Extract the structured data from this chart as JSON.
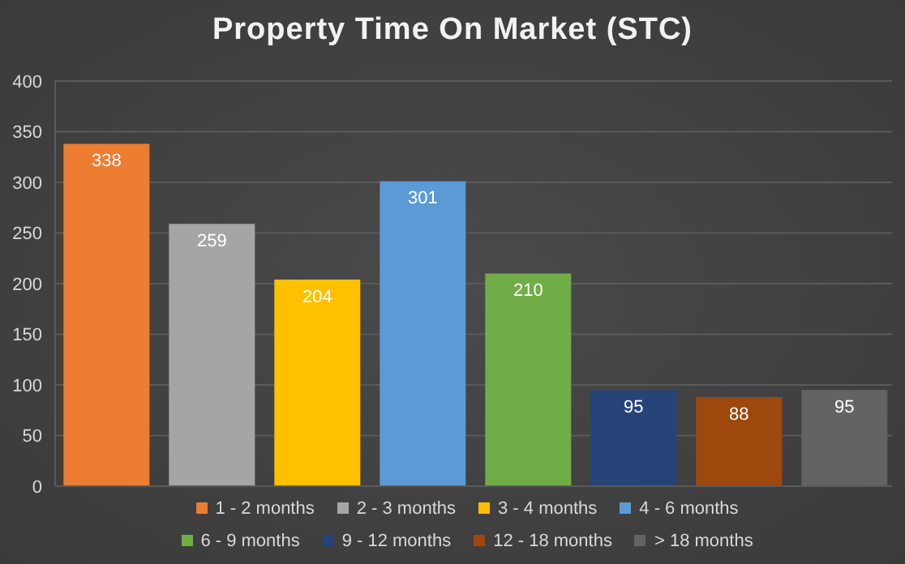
{
  "chart_data": {
    "type": "bar",
    "title": "Property Time On Market (STC)",
    "categories": [
      null
    ],
    "series": [
      {
        "name": "1 - 2 months",
        "color": "#ed7d31",
        "values": [
          338
        ]
      },
      {
        "name": "2 - 3 months",
        "color": "#a5a5a5",
        "values": [
          259
        ]
      },
      {
        "name": "3 - 4 months",
        "color": "#ffc000",
        "values": [
          204
        ]
      },
      {
        "name": "4 - 6 months",
        "color": "#5b9bd5",
        "values": [
          301
        ]
      },
      {
        "name": "6 - 9 months",
        "color": "#70ad47",
        "values": [
          210
        ]
      },
      {
        "name": "9 - 12 months",
        "color": "#264478",
        "values": [
          95
        ]
      },
      {
        "name": "12 - 18 months",
        "color": "#9e480e",
        "values": [
          88
        ]
      },
      {
        "name": "> 18 months",
        "color": "#636363",
        "values": [
          95
        ]
      }
    ],
    "ylim": [
      0,
      400
    ],
    "yticks": [
      0,
      50,
      100,
      150,
      200,
      250,
      300,
      350,
      400
    ],
    "grid": "y",
    "legend": "bottom",
    "data_labels": true,
    "tick_labels": "y"
  }
}
